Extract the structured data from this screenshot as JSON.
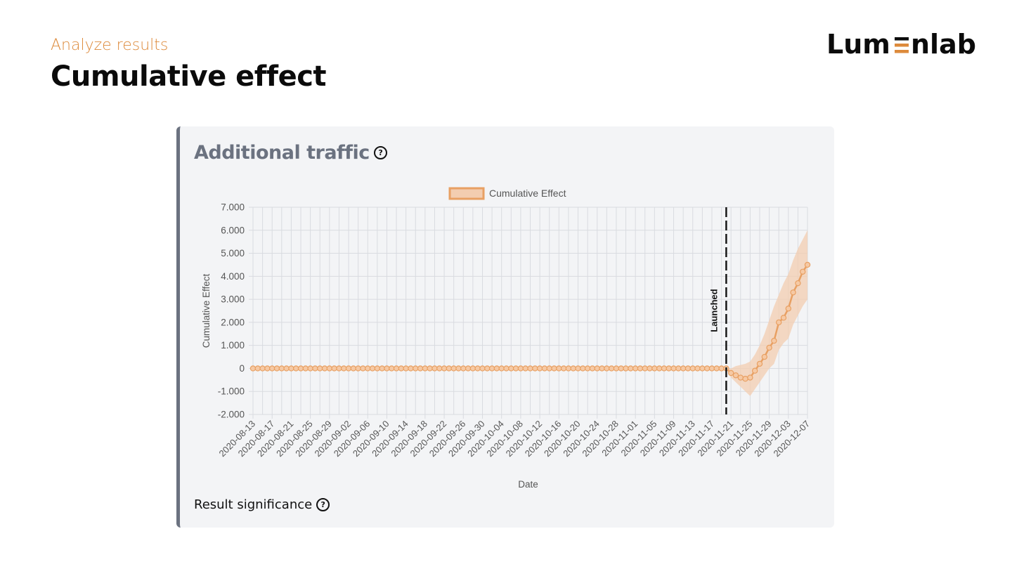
{
  "header": {
    "eyebrow": "Analyze results",
    "title": "Cumulative effect",
    "logo": "Lumenlab"
  },
  "card": {
    "title": "Additional traffic",
    "help_icon": "question-circle-icon",
    "significance_label": "Result significance"
  },
  "colors": {
    "accent": "#dd8a3b",
    "line": "#e8a063",
    "band": "#f3cdb0",
    "card_border": "#6b7280"
  },
  "chart_data": {
    "type": "line",
    "xlabel": "Date",
    "ylabel": "Cumulative Effect",
    "legend": [
      "Cumulative Effect"
    ],
    "legend_position": "top",
    "grid": true,
    "ylim": [
      -2000,
      7000
    ],
    "yticks": [
      7000,
      6000,
      5000,
      4000,
      3000,
      2000,
      1000,
      0,
      -1000,
      -2000
    ],
    "ytick_labels": [
      "7.000",
      "6.000",
      "5.000",
      "4.000",
      "3.000",
      "2.000",
      "1.000",
      "0",
      "-1.000",
      "-2.000"
    ],
    "x_start": "2020-08-13",
    "x_end": "2020-12-07",
    "xtick_labels": [
      "2020-08-13",
      "2020-08-17",
      "2020-08-21",
      "2020-08-25",
      "2020-08-29",
      "2020-09-02",
      "2020-09-06",
      "2020-09-10",
      "2020-09-14",
      "2020-09-18",
      "2020-09-22",
      "2020-09-26",
      "2020-09-30",
      "2020-10-04",
      "2020-10-08",
      "2020-10-12",
      "2020-10-16",
      "2020-10-20",
      "2020-10-24",
      "2020-10-28",
      "2020-11-01",
      "2020-11-05",
      "2020-11-09",
      "2020-11-13",
      "2020-11-17",
      "2020-11-21",
      "2020-11-25",
      "2020-11-29",
      "2020-12-03",
      "2020-12-07"
    ],
    "annotation": {
      "label": "Launched",
      "date": "2020-11-20"
    },
    "pre_launch_value": 0,
    "post_launch": {
      "dates": [
        "2020-11-21",
        "2020-11-22",
        "2020-11-23",
        "2020-11-24",
        "2020-11-25",
        "2020-11-26",
        "2020-11-27",
        "2020-11-28",
        "2020-11-29",
        "2020-11-30",
        "2020-12-01",
        "2020-12-02",
        "2020-12-03",
        "2020-12-04",
        "2020-12-05",
        "2020-12-06",
        "2020-12-07"
      ],
      "values": [
        -200,
        -300,
        -400,
        -450,
        -400,
        -100,
        200,
        500,
        900,
        1200,
        2000,
        2200,
        2600,
        3300,
        3700,
        4200,
        4500
      ],
      "upper": [
        0,
        100,
        150,
        200,
        300,
        600,
        1000,
        1500,
        2100,
        2700,
        3200,
        3700,
        4100,
        4700,
        5200,
        5600,
        6000
      ],
      "lower": [
        -400,
        -600,
        -800,
        -1000,
        -1200,
        -900,
        -600,
        -300,
        0,
        200,
        800,
        1100,
        1300,
        1900,
        2300,
        2700,
        3000
      ]
    }
  }
}
